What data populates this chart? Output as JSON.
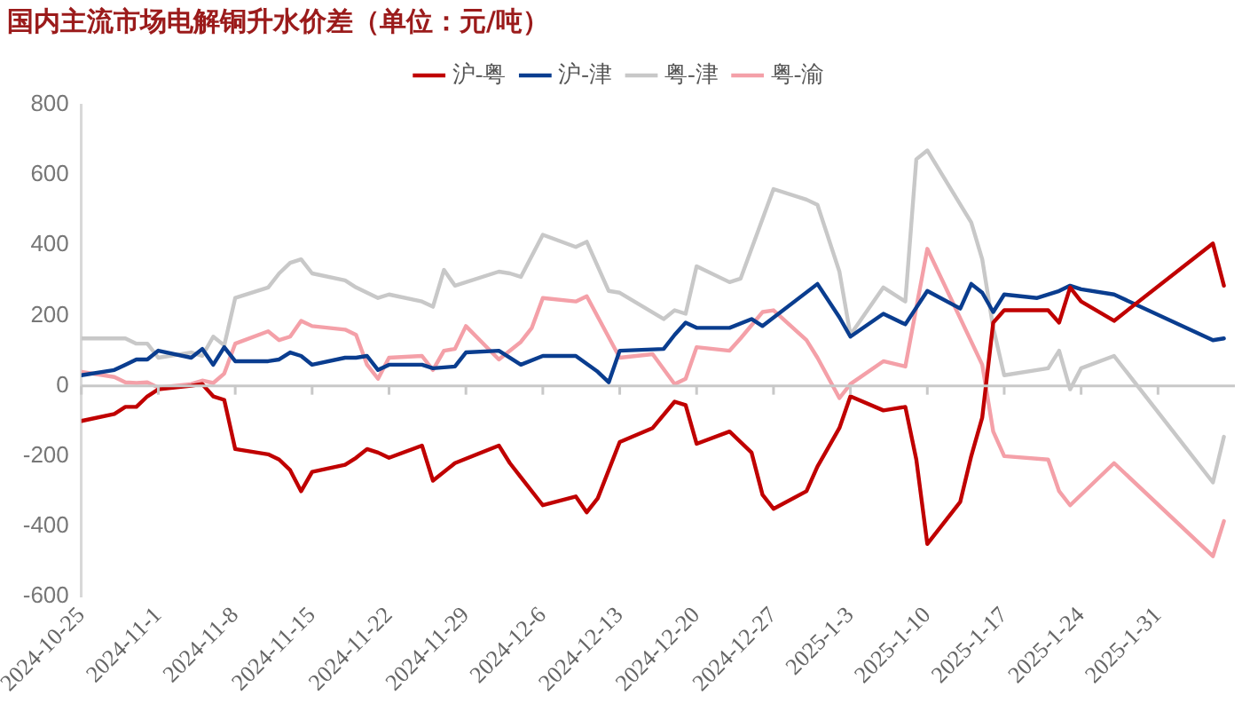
{
  "chart_data": {
    "type": "line",
    "title": "国内主流市场电解铜升水价差（单位：元/吨）",
    "xlim": [
      "2024-10-25",
      "2025-02-07"
    ],
    "xticks": [
      {
        "value": "2024-10-25",
        "label": "2024-10-25"
      },
      {
        "value": "2024-11-01",
        "label": "2024-11-1"
      },
      {
        "value": "2024-11-08",
        "label": "2024-11-8"
      },
      {
        "value": "2024-11-15",
        "label": "2024-11-15"
      },
      {
        "value": "2024-11-22",
        "label": "2024-11-22"
      },
      {
        "value": "2024-11-29",
        "label": "2024-11-29"
      },
      {
        "value": "2024-12-06",
        "label": "2024-12-6"
      },
      {
        "value": "2024-12-13",
        "label": "2024-12-13"
      },
      {
        "value": "2024-12-20",
        "label": "2024-12-20"
      },
      {
        "value": "2024-12-27",
        "label": "2024-12-27"
      },
      {
        "value": "2025-01-03",
        "label": "2025-1-3"
      },
      {
        "value": "2025-01-10",
        "label": "2025-1-10"
      },
      {
        "value": "2025-01-17",
        "label": "2025-1-17"
      },
      {
        "value": "2025-01-24",
        "label": "2025-1-24"
      },
      {
        "value": "2025-01-31",
        "label": "2025-1-31"
      }
    ],
    "ylim": [
      -600,
      800
    ],
    "yticks": [
      -600,
      -400,
      -200,
      0,
      200,
      400,
      600,
      800
    ],
    "legend": "top",
    "marker": "none",
    "line_style": "solid",
    "series": [
      {
        "name": "沪-粤",
        "color": "#c00000",
        "x": [
          "2024-10-25",
          "2024-10-28",
          "2024-10-29",
          "2024-10-30",
          "2024-10-31",
          "2024-11-01",
          "2024-11-04",
          "2024-11-05",
          "2024-11-06",
          "2024-11-07",
          "2024-11-08",
          "2024-11-11",
          "2024-11-12",
          "2024-11-13",
          "2024-11-14",
          "2024-11-15",
          "2024-11-18",
          "2024-11-19",
          "2024-11-20",
          "2024-11-21",
          "2024-11-22",
          "2024-11-25",
          "2024-11-26",
          "2024-11-28",
          "2024-12-02",
          "2024-12-03",
          "2024-12-04",
          "2024-12-06",
          "2024-12-09",
          "2024-12-10",
          "2024-12-11",
          "2024-12-13",
          "2024-12-16",
          "2024-12-18",
          "2024-12-19",
          "2024-12-20",
          "2024-12-23",
          "2024-12-25",
          "2024-12-26",
          "2024-12-27",
          "2024-12-30",
          "2024-12-31",
          "2025-01-02",
          "2025-01-03",
          "2025-01-06",
          "2025-01-07",
          "2025-01-08",
          "2025-01-09",
          "2025-01-10",
          "2025-01-13",
          "2025-01-14",
          "2025-01-15",
          "2025-01-16",
          "2025-01-17",
          "2025-01-20",
          "2025-01-21",
          "2025-01-22",
          "2025-01-23",
          "2025-01-24",
          "2025-01-27",
          "2025-02-05",
          "2025-02-06"
        ],
        "values": [
          -100,
          -80,
          -60,
          -60,
          -30,
          -10,
          0,
          5,
          -30,
          -40,
          -180,
          -195,
          -210,
          -240,
          -300,
          -245,
          -225,
          -205,
          -180,
          -190,
          -205,
          -170,
          -270,
          -220,
          -170,
          -220,
          -260,
          -340,
          -315,
          -360,
          -320,
          -160,
          -120,
          -45,
          -55,
          -165,
          -130,
          -190,
          -310,
          -350,
          -300,
          -230,
          -120,
          -30,
          -70,
          -65,
          -60,
          -210,
          -450,
          -330,
          -200,
          -90,
          180,
          215,
          215,
          215,
          180,
          280,
          240,
          185,
          405,
          285
        ]
      },
      {
        "name": "沪-津",
        "color": "#0a3d8f",
        "x": [
          "2024-10-25",
          "2024-10-28",
          "2024-10-29",
          "2024-10-30",
          "2024-10-31",
          "2024-11-01",
          "2024-11-04",
          "2024-11-05",
          "2024-11-06",
          "2024-11-07",
          "2024-11-08",
          "2024-11-11",
          "2024-11-12",
          "2024-11-13",
          "2024-11-14",
          "2024-11-15",
          "2024-11-18",
          "2024-11-19",
          "2024-11-20",
          "2024-11-21",
          "2024-11-22",
          "2024-11-25",
          "2024-11-26",
          "2024-11-28",
          "2024-11-29",
          "2024-12-02",
          "2024-12-04",
          "2024-12-06",
          "2024-12-09",
          "2024-12-11",
          "2024-12-12",
          "2024-12-13",
          "2024-12-17",
          "2024-12-18",
          "2024-12-19",
          "2024-12-20",
          "2024-12-23",
          "2024-12-25",
          "2024-12-26",
          "2024-12-31",
          "2025-01-02",
          "2025-01-03",
          "2025-01-06",
          "2025-01-08",
          "2025-01-10",
          "2025-01-13",
          "2025-01-14",
          "2025-01-15",
          "2025-01-16",
          "2025-01-17",
          "2025-01-20",
          "2025-01-22",
          "2025-01-23",
          "2025-01-24",
          "2025-01-27",
          "2025-02-05",
          "2025-02-06"
        ],
        "values": [
          30,
          45,
          60,
          75,
          75,
          100,
          80,
          105,
          60,
          110,
          70,
          70,
          75,
          95,
          85,
          60,
          80,
          80,
          85,
          45,
          60,
          60,
          50,
          55,
          95,
          100,
          60,
          85,
          85,
          40,
          10,
          100,
          105,
          145,
          180,
          165,
          165,
          190,
          170,
          290,
          195,
          140,
          205,
          175,
          270,
          220,
          290,
          265,
          210,
          260,
          250,
          270,
          285,
          275,
          260,
          130,
          135
        ]
      },
      {
        "name": "粤-津",
        "color": "#c8c8c8",
        "x": [
          "2024-10-25",
          "2024-10-28",
          "2024-10-29",
          "2024-10-30",
          "2024-10-31",
          "2024-11-01",
          "2024-11-04",
          "2024-11-05",
          "2024-11-06",
          "2024-11-07",
          "2024-11-08",
          "2024-11-11",
          "2024-11-12",
          "2024-11-13",
          "2024-11-14",
          "2024-11-15",
          "2024-11-18",
          "2024-11-19",
          "2024-11-20",
          "2024-11-21",
          "2024-11-22",
          "2024-11-25",
          "2024-11-26",
          "2024-11-27",
          "2024-11-28",
          "2024-12-02",
          "2024-12-03",
          "2024-12-04",
          "2024-12-06",
          "2024-12-09",
          "2024-12-10",
          "2024-12-12",
          "2024-12-13",
          "2024-12-17",
          "2024-12-18",
          "2024-12-19",
          "2024-12-20",
          "2024-12-23",
          "2024-12-24",
          "2024-12-25",
          "2024-12-27",
          "2024-12-30",
          "2024-12-31",
          "2025-01-02",
          "2025-01-03",
          "2025-01-06",
          "2025-01-08",
          "2025-01-09",
          "2025-01-10",
          "2025-01-14",
          "2025-01-15",
          "2025-01-16",
          "2025-01-17",
          "2025-01-21",
          "2025-01-22",
          "2025-01-23",
          "2025-01-24",
          "2025-01-27",
          "2025-02-05",
          "2025-02-06"
        ],
        "values": [
          135,
          135,
          135,
          120,
          120,
          80,
          95,
          85,
          140,
          115,
          250,
          280,
          320,
          350,
          360,
          320,
          300,
          280,
          265,
          250,
          260,
          240,
          225,
          330,
          285,
          325,
          320,
          310,
          430,
          395,
          410,
          270,
          265,
          190,
          215,
          205,
          340,
          295,
          305,
          390,
          560,
          530,
          515,
          325,
          145,
          280,
          240,
          645,
          670,
          465,
          360,
          165,
          30,
          50,
          100,
          -10,
          50,
          85,
          -275,
          -145
        ]
      },
      {
        "name": "粤-渝",
        "color": "#f4a0a8",
        "x": [
          "2024-10-25",
          "2024-10-28",
          "2024-10-29",
          "2024-10-30",
          "2024-10-31",
          "2024-11-01",
          "2024-11-04",
          "2024-11-05",
          "2024-11-06",
          "2024-11-07",
          "2024-11-08",
          "2024-11-11",
          "2024-11-12",
          "2024-11-13",
          "2024-11-14",
          "2024-11-15",
          "2024-11-18",
          "2024-11-19",
          "2024-11-20",
          "2024-11-21",
          "2024-11-22",
          "2024-11-25",
          "2024-11-26",
          "2024-11-27",
          "2024-11-28",
          "2024-11-29",
          "2024-12-02",
          "2024-12-04",
          "2024-12-05",
          "2024-12-06",
          "2024-12-09",
          "2024-12-10",
          "2024-12-13",
          "2024-12-16",
          "2024-12-18",
          "2024-12-19",
          "2024-12-20",
          "2024-12-23",
          "2024-12-24",
          "2024-12-26",
          "2024-12-27",
          "2024-12-30",
          "2024-12-31",
          "2025-01-02",
          "2025-01-03",
          "2025-01-06",
          "2025-01-08",
          "2025-01-10",
          "2025-01-15",
          "2025-01-16",
          "2025-01-17",
          "2025-01-21",
          "2025-01-22",
          "2025-01-23",
          "2025-01-27",
          "2025-02-05",
          "2025-02-06"
        ],
        "values": [
          40,
          25,
          10,
          8,
          10,
          -5,
          5,
          15,
          8,
          35,
          120,
          155,
          130,
          140,
          185,
          170,
          160,
          145,
          60,
          20,
          80,
          85,
          45,
          100,
          105,
          170,
          75,
          125,
          165,
          250,
          240,
          255,
          80,
          90,
          5,
          20,
          110,
          100,
          135,
          210,
          215,
          130,
          80,
          -35,
          5,
          70,
          55,
          390,
          60,
          -130,
          -200,
          -210,
          -300,
          -340,
          -220,
          -485,
          -385
        ]
      }
    ]
  }
}
